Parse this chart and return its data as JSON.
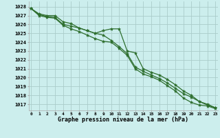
{
  "title": "Graphe pression niveau de la mer (hPa)",
  "background_color": "#cceeed",
  "grid_color": "#aaccca",
  "line_color": "#2d6e2d",
  "ylim": [
    1016.3,
    1028.6
  ],
  "yticks": [
    1017,
    1018,
    1019,
    1020,
    1021,
    1022,
    1023,
    1024,
    1025,
    1026,
    1027,
    1028
  ],
  "series": [
    [
      1027.8,
      1027.2,
      1027.0,
      1027.0,
      1026.3,
      1026.1,
      1025.6,
      1025.3,
      1025.0,
      1025.3,
      1025.5,
      1025.5,
      1023.0,
      1022.8,
      1021.0,
      1020.6,
      1020.3,
      1019.8,
      1019.2,
      1018.5,
      1018.0,
      1017.3,
      1017.0,
      1016.6
    ],
    [
      1027.8,
      1027.1,
      1026.9,
      1026.8,
      1026.0,
      1025.8,
      1025.6,
      1025.3,
      1025.0,
      1024.8,
      1024.2,
      1023.5,
      1022.7,
      1021.2,
      1020.7,
      1020.3,
      1019.9,
      1019.4,
      1018.8,
      1018.2,
      1017.8,
      1017.3,
      1016.9,
      1016.6
    ],
    [
      1027.8,
      1027.0,
      1026.8,
      1026.7,
      1025.9,
      1025.5,
      1025.2,
      1024.8,
      1024.4,
      1024.1,
      1024.0,
      1023.3,
      1022.5,
      1021.0,
      1020.4,
      1020.1,
      1019.7,
      1019.1,
      1018.5,
      1017.7,
      1017.2,
      1016.9,
      1016.8,
      1016.5
    ]
  ]
}
